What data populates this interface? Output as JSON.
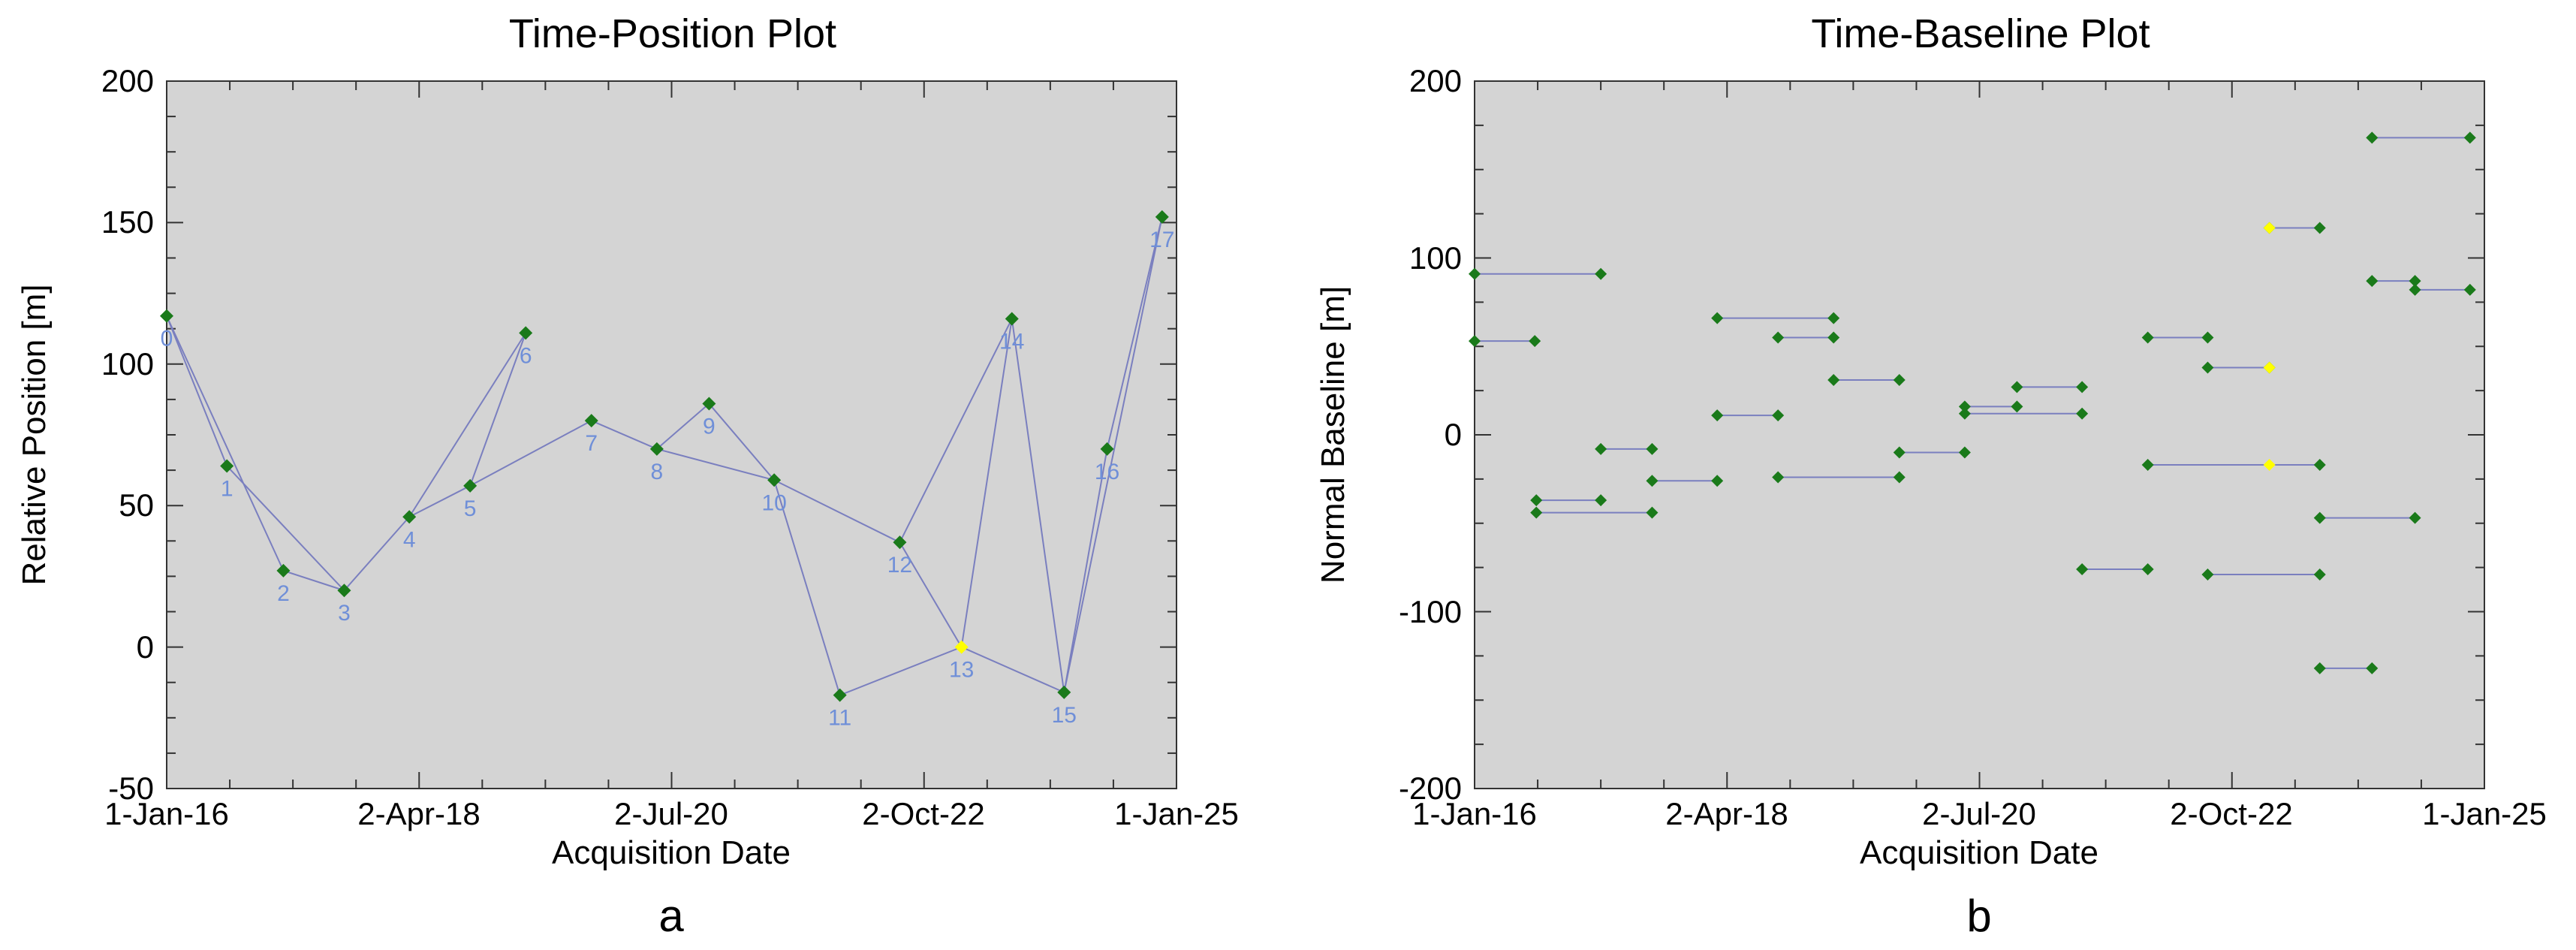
{
  "chart_data": [
    {
      "type": "line",
      "panel_label": "a",
      "title": "Time-Position Plot",
      "xlabel": "Acquisition Date",
      "ylabel": "Relative Position [m]",
      "xlim": [
        "2016-01-01",
        "2025-01-01"
      ],
      "ylim": [
        -50,
        200
      ],
      "x_ticks": [
        "1-Jan-16",
        "2-Apr-18",
        "2-Jul-20",
        "2-Oct-22",
        "1-Jan-25"
      ],
      "y_ticks": [
        "-50",
        "0",
        "50",
        "100",
        "150",
        "200"
      ],
      "background": "#d4d4d4",
      "point_color": "#1a7a1a",
      "master_color": "#ffff00",
      "line_color": "#7a7fbf",
      "label_color": "#6f8fd8",
      "points": [
        {
          "id": "0",
          "date": "2016-01-01",
          "y": 117
        },
        {
          "id": "1",
          "date": "2016-07-15",
          "y": 64
        },
        {
          "id": "2",
          "date": "2017-01-15",
          "y": 27
        },
        {
          "id": "3",
          "date": "2017-08-01",
          "y": 20
        },
        {
          "id": "4",
          "date": "2018-03-01",
          "y": 46
        },
        {
          "id": "5",
          "date": "2018-09-15",
          "y": 57
        },
        {
          "id": "6",
          "date": "2019-03-15",
          "y": 111
        },
        {
          "id": "7",
          "date": "2019-10-15",
          "y": 80
        },
        {
          "id": "8",
          "date": "2020-05-15",
          "y": 70
        },
        {
          "id": "9",
          "date": "2020-11-01",
          "y": 86
        },
        {
          "id": "10",
          "date": "2021-06-01",
          "y": 59
        },
        {
          "id": "11",
          "date": "2022-01-01",
          "y": -17
        },
        {
          "id": "12",
          "date": "2022-07-15",
          "y": 37
        },
        {
          "id": "13",
          "date": "2023-02-01",
          "y": 0,
          "master": true
        },
        {
          "id": "14",
          "date": "2023-07-15",
          "y": 116
        },
        {
          "id": "15",
          "date": "2024-01-01",
          "y": -16
        },
        {
          "id": "16",
          "date": "2024-05-20",
          "y": 70
        },
        {
          "id": "17",
          "date": "2024-11-15",
          "y": 152
        }
      ],
      "connections": [
        [
          0,
          1
        ],
        [
          0,
          2
        ],
        [
          1,
          3
        ],
        [
          2,
          3
        ],
        [
          3,
          4
        ],
        [
          4,
          5
        ],
        [
          4,
          6
        ],
        [
          5,
          6
        ],
        [
          5,
          7
        ],
        [
          7,
          8
        ],
        [
          8,
          10
        ],
        [
          8,
          9
        ],
        [
          9,
          10
        ],
        [
          10,
          11
        ],
        [
          10,
          12
        ],
        [
          11,
          13
        ],
        [
          12,
          14
        ],
        [
          13,
          14
        ],
        [
          13,
          15
        ],
        [
          14,
          15
        ],
        [
          15,
          16
        ],
        [
          15,
          17
        ],
        [
          16,
          17
        ],
        [
          12,
          13
        ]
      ]
    },
    {
      "type": "scatter",
      "panel_label": "b",
      "title": "Time-Baseline Plot",
      "xlabel": "Acquisition Date",
      "ylabel": "Normal Baseline [m]",
      "xlim": [
        "2016-01-01",
        "2025-01-01"
      ],
      "ylim": [
        -200,
        200
      ],
      "x_ticks": [
        "1-Jan-16",
        "2-Apr-18",
        "2-Jul-20",
        "2-Oct-22",
        "1-Jan-25"
      ],
      "y_ticks": [
        "-200",
        "-100",
        "0",
        "100",
        "200"
      ],
      "background": "#d4d4d4",
      "point_color": "#1a7a1a",
      "master_color": "#ffff00",
      "line_color": "#7a7fbf",
      "pairs": [
        {
          "d1": "2016-01-01",
          "d2": "2017-02-15",
          "y": 91
        },
        {
          "d1": "2016-01-01",
          "d2": "2016-07-15",
          "y": 53
        },
        {
          "d1": "2016-07-20",
          "d2": "2017-02-15",
          "y": -37
        },
        {
          "d1": "2016-07-20",
          "d2": "2017-08-01",
          "y": -44
        },
        {
          "d1": "2017-02-15",
          "d2": "2017-08-01",
          "y": -8
        },
        {
          "d1": "2017-08-01",
          "d2": "2018-03-01",
          "y": -26
        },
        {
          "d1": "2018-03-01",
          "d2": "2019-03-15",
          "y": 66
        },
        {
          "d1": "2018-03-01",
          "d2": "2018-09-15",
          "y": 11
        },
        {
          "d1": "2018-09-15",
          "d2": "2019-03-15",
          "y": 55
        },
        {
          "d1": "2018-09-15",
          "d2": "2019-10-15",
          "y": -24
        },
        {
          "d1": "2019-03-15",
          "d2": "2019-10-15",
          "y": 31
        },
        {
          "d1": "2019-10-15",
          "d2": "2020-05-15",
          "y": -10
        },
        {
          "d1": "2020-05-15",
          "d2": "2021-06-01",
          "y": 12
        },
        {
          "d1": "2020-05-15",
          "d2": "2020-11-01",
          "y": 16
        },
        {
          "d1": "2020-11-01",
          "d2": "2021-06-01",
          "y": 27
        },
        {
          "d1": "2021-06-01",
          "d2": "2022-01-01",
          "y": -76
        },
        {
          "d1": "2022-01-01",
          "d2": "2022-07-15",
          "y": 55
        },
        {
          "d1": "2022-01-01",
          "d2": "2023-07-15",
          "y": -17
        },
        {
          "d1": "2022-07-15",
          "d2": "2023-02-01",
          "y": 38
        },
        {
          "d1": "2022-07-15",
          "d2": "2023-07-15",
          "y": -79
        },
        {
          "d1": "2023-02-01",
          "d2": "2023-07-15",
          "y": 117
        },
        {
          "d1": "2023-07-15",
          "d2": "2024-01-01",
          "y": -132
        },
        {
          "d1": "2023-07-15",
          "d2": "2024-05-20",
          "y": -47
        },
        {
          "d1": "2024-01-01",
          "d2": "2024-05-20",
          "y": 87
        },
        {
          "d1": "2024-01-01",
          "d2": "2024-11-15",
          "y": 168
        },
        {
          "d1": "2024-05-20",
          "d2": "2024-11-15",
          "y": 82
        }
      ],
      "master_points": [
        {
          "date": "2023-02-01",
          "y": 117
        },
        {
          "date": "2023-02-01",
          "y": 38
        },
        {
          "date": "2023-02-01",
          "y": -17
        }
      ]
    }
  ]
}
